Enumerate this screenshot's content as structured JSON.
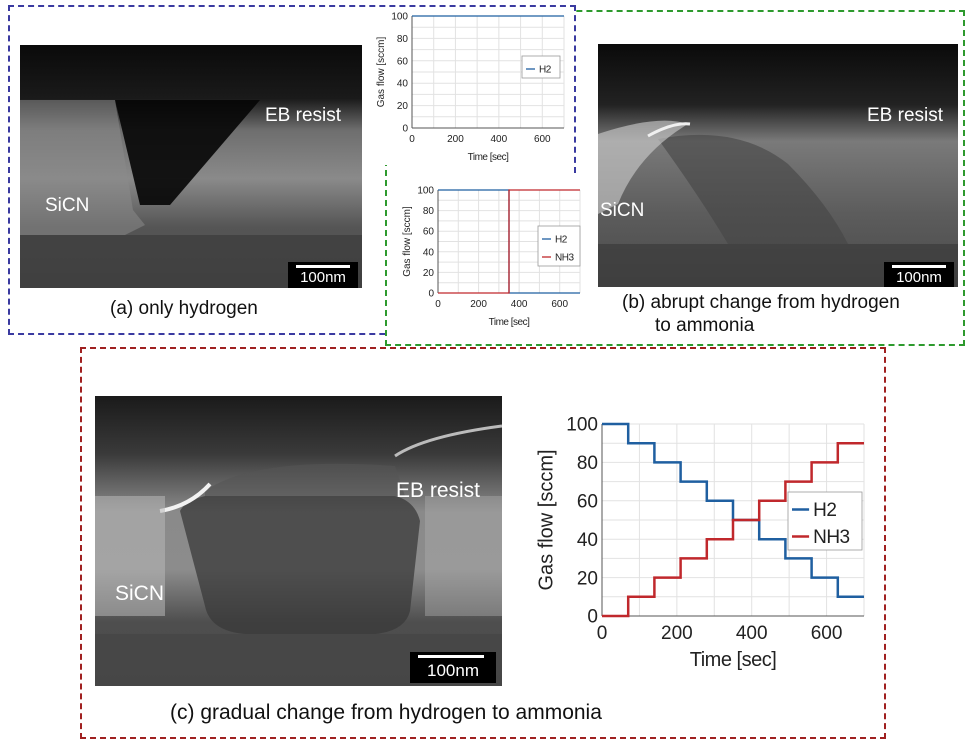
{
  "panels": {
    "a": {
      "caption": "(a) only hydrogen",
      "label_resist": "EB resist",
      "label_sicn": "SiCN",
      "scale": "100nm"
    },
    "b": {
      "caption_line1": "(b) abrupt change from hydrogen",
      "caption_line2": "to ammonia",
      "label_resist": "EB resist",
      "label_sicn": "SiCN",
      "scale": "100nm"
    },
    "c": {
      "caption": "(c) gradual change from hydrogen to ammonia",
      "label_resist": "EB resist",
      "label_sicn": "SiCN",
      "scale": "100nm"
    }
  },
  "colors": {
    "box_a": "#3a3aa0",
    "box_b": "#2e9a2e",
    "box_c": "#a02020",
    "h2": "#1f5fa0",
    "nh3": "#c0282c"
  },
  "chart_data": [
    {
      "id": "chart-a",
      "type": "line",
      "xlabel": "Time [sec]",
      "ylabel": "Gas flow [sccm]",
      "xlim": [
        0,
        700
      ],
      "ylim": [
        0,
        100
      ],
      "xticks": [
        0,
        200,
        400,
        600
      ],
      "yticks": [
        0,
        20,
        40,
        60,
        80,
        100
      ],
      "grid": true,
      "legend": "right",
      "series": [
        {
          "name": "H2",
          "color": "#1f5fa0",
          "x": [
            0,
            700
          ],
          "y": [
            100,
            100
          ]
        }
      ]
    },
    {
      "id": "chart-b",
      "type": "line",
      "xlabel": "Time [sec]",
      "ylabel": "Gas flow [sccm]",
      "xlim": [
        0,
        700
      ],
      "ylim": [
        0,
        100
      ],
      "xticks": [
        0,
        200,
        400,
        600
      ],
      "yticks": [
        0,
        20,
        40,
        60,
        80,
        100
      ],
      "grid": true,
      "legend": "right",
      "series": [
        {
          "name": "H2",
          "color": "#1f5fa0",
          "x": [
            0,
            350,
            350,
            700
          ],
          "y": [
            100,
            100,
            0,
            0
          ]
        },
        {
          "name": "NH3",
          "color": "#c0282c",
          "x": [
            0,
            350,
            350,
            700
          ],
          "y": [
            0,
            0,
            100,
            100
          ]
        }
      ]
    },
    {
      "id": "chart-c",
      "type": "line",
      "xlabel": "Time [sec]",
      "ylabel": "Gas flow [sccm]",
      "xlim": [
        0,
        700
      ],
      "ylim": [
        0,
        100
      ],
      "xticks": [
        0,
        200,
        400,
        600
      ],
      "yticks": [
        0,
        20,
        40,
        60,
        80,
        100
      ],
      "grid": true,
      "legend": "right",
      "series": [
        {
          "name": "H2",
          "color": "#1f5fa0",
          "x": [
            0,
            70,
            70,
            140,
            140,
            210,
            210,
            280,
            280,
            350,
            350,
            420,
            420,
            490,
            490,
            560,
            560,
            630,
            630,
            700
          ],
          "y": [
            100,
            100,
            90,
            90,
            80,
            80,
            70,
            70,
            60,
            60,
            50,
            50,
            40,
            40,
            30,
            30,
            20,
            20,
            10,
            10
          ]
        },
        {
          "name": "NH3",
          "color": "#c0282c",
          "x": [
            0,
            70,
            70,
            140,
            140,
            210,
            210,
            280,
            280,
            350,
            350,
            420,
            420,
            490,
            490,
            560,
            560,
            630,
            630,
            700
          ],
          "y": [
            0,
            0,
            10,
            10,
            20,
            20,
            30,
            30,
            40,
            40,
            50,
            50,
            60,
            60,
            70,
            70,
            80,
            80,
            90,
            90
          ]
        }
      ]
    }
  ]
}
